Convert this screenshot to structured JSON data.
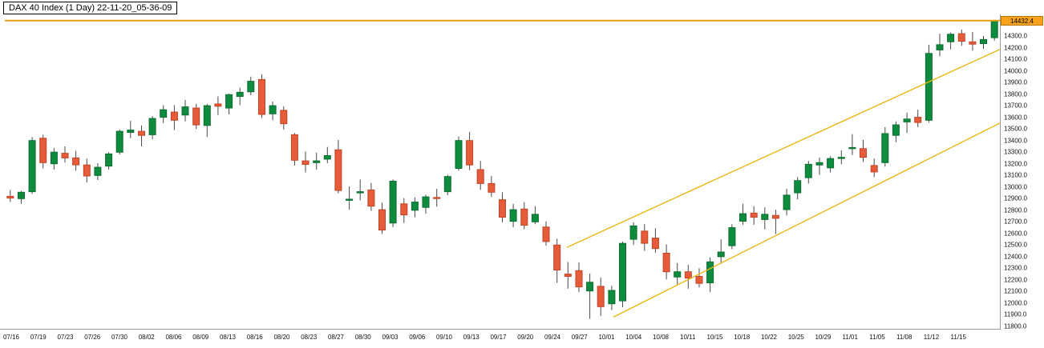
{
  "title": "DAX 40 Index (1 Day) 22-11-20_05-36-09",
  "last_price_label": "14432.4",
  "colors": {
    "up": "#0f8b3e",
    "up_border": "#0a6e30",
    "down": "#e65b39",
    "down_border": "#c24527",
    "wick": "#4a4a4a",
    "trend_line": "#e9b616",
    "horizontal_line": "#e79f13",
    "tag_bg": "#f6a21c"
  },
  "chart_data": {
    "type": "candlestick",
    "title": "DAX 40 Index (1 Day) 22-11-20_05-36-09",
    "symbol": "DAX 40 Index",
    "timeframe": "1 Day",
    "grid": false,
    "legend": false,
    "y_axis": {
      "min": 11800,
      "max": 14400,
      "tick_step": 100,
      "labels": [
        "14300.0",
        "14200.0",
        "14100.0",
        "14000.0",
        "13900.0",
        "13800.0",
        "13700.0",
        "13600.0",
        "13500.0",
        "13400.0",
        "13300.0",
        "13200.0",
        "13100.0",
        "13000.0",
        "12900.0",
        "12800.0",
        "12700.0",
        "12600.0",
        "12500.0",
        "12400.0",
        "12300.0",
        "12200.0",
        "12100.0",
        "12000.0",
        "11900.0",
        "11800.0"
      ]
    },
    "x_labels": [
      "07/16",
      "07/19",
      "07/23",
      "07/26",
      "07/30",
      "08/02",
      "08/06",
      "08/09",
      "08/13",
      "08/16",
      "08/20",
      "08/23",
      "08/27",
      "08/30",
      "09/03",
      "09/06",
      "09/10",
      "09/13",
      "09/17",
      "09/20",
      "09/24",
      "09/27",
      "10/01",
      "10/04",
      "10/08",
      "10/11",
      "10/15",
      "10/18",
      "10/22",
      "10/25",
      "10/29",
      "11/01",
      "11/05",
      "11/08",
      "11/12",
      "11/15"
    ],
    "candles": [
      [
        12920,
        12975,
        12870,
        12905
      ],
      [
        12900,
        12965,
        12855,
        12955
      ],
      [
        12960,
        13430,
        12940,
        13400
      ],
      [
        13420,
        13450,
        13160,
        13210
      ],
      [
        13200,
        13335,
        13150,
        13300
      ],
      [
        13290,
        13350,
        13210,
        13250
      ],
      [
        13250,
        13310,
        13140,
        13190
      ],
      [
        13190,
        13245,
        13040,
        13095
      ],
      [
        13100,
        13205,
        13060,
        13170
      ],
      [
        13180,
        13300,
        13150,
        13285
      ],
      [
        13300,
        13495,
        13280,
        13480
      ],
      [
        13470,
        13570,
        13420,
        13490
      ],
      [
        13480,
        13530,
        13350,
        13445
      ],
      [
        13450,
        13610,
        13410,
        13590
      ],
      [
        13600,
        13705,
        13550,
        13665
      ],
      [
        13645,
        13705,
        13490,
        13575
      ],
      [
        13620,
        13750,
        13565,
        13690
      ],
      [
        13680,
        13715,
        13500,
        13535
      ],
      [
        13530,
        13715,
        13430,
        13700
      ],
      [
        13715,
        13780,
        13620,
        13695
      ],
      [
        13680,
        13805,
        13625,
        13795
      ],
      [
        13780,
        13855,
        13705,
        13815
      ],
      [
        13820,
        13950,
        13790,
        13910
      ],
      [
        13925,
        13970,
        13595,
        13625
      ],
      [
        13630,
        13735,
        13575,
        13700
      ],
      [
        13660,
        13695,
        13495,
        13545
      ],
      [
        13450,
        13465,
        13185,
        13230
      ],
      [
        13225,
        13305,
        13125,
        13195
      ],
      [
        13210,
        13295,
        13150,
        13225
      ],
      [
        13240,
        13345,
        13205,
        13270
      ],
      [
        13320,
        13405,
        12945,
        12970
      ],
      [
        12890,
        13005,
        12805,
        12895
      ],
      [
        12950,
        13065,
        12885,
        12960
      ],
      [
        12975,
        13035,
        12795,
        12835
      ],
      [
        12805,
        12865,
        12595,
        12630
      ],
      [
        12690,
        13065,
        12655,
        13050
      ],
      [
        12855,
        12905,
        12690,
        12760
      ],
      [
        12800,
        12910,
        12740,
        12870
      ],
      [
        12825,
        12935,
        12770,
        12915
      ],
      [
        12910,
        12985,
        12830,
        12905
      ],
      [
        12960,
        13105,
        12930,
        13090
      ],
      [
        13160,
        13435,
        13140,
        13400
      ],
      [
        13400,
        13475,
        13145,
        13190
      ],
      [
        13150,
        13225,
        12975,
        13030
      ],
      [
        13030,
        13095,
        12915,
        12955
      ],
      [
        12890,
        12955,
        12695,
        12740
      ],
      [
        12705,
        12855,
        12655,
        12805
      ],
      [
        12810,
        12870,
        12635,
        12670
      ],
      [
        12700,
        12835,
        12680,
        12765
      ],
      [
        12655,
        12705,
        12495,
        12530
      ],
      [
        12500,
        12555,
        12175,
        12285
      ],
      [
        12250,
        12355,
        12125,
        12230
      ],
      [
        12280,
        12350,
        12095,
        12140
      ],
      [
        12105,
        12255,
        11865,
        12180
      ],
      [
        12145,
        12220,
        11890,
        11970
      ],
      [
        11995,
        12150,
        11940,
        12110
      ],
      [
        12020,
        12530,
        11965,
        12515
      ],
      [
        12550,
        12695,
        12500,
        12665
      ],
      [
        12620,
        12680,
        12450,
        12515
      ],
      [
        12560,
        12645,
        12435,
        12470
      ],
      [
        12430,
        12505,
        12205,
        12270
      ],
      [
        12225,
        12345,
        12160,
        12270
      ],
      [
        12270,
        12330,
        12125,
        12215
      ],
      [
        12230,
        12300,
        12135,
        12170
      ],
      [
        12175,
        12395,
        12095,
        12355
      ],
      [
        12400,
        12550,
        12340,
        12440
      ],
      [
        12495,
        12680,
        12465,
        12650
      ],
      [
        12705,
        12855,
        12675,
        12770
      ],
      [
        12775,
        12835,
        12675,
        12740
      ],
      [
        12720,
        12825,
        12635,
        12765
      ],
      [
        12755,
        12805,
        12595,
        12730
      ],
      [
        12805,
        12985,
        12755,
        12930
      ],
      [
        12950,
        13085,
        12895,
        13055
      ],
      [
        13080,
        13225,
        13030,
        13195
      ],
      [
        13190,
        13255,
        13105,
        13210
      ],
      [
        13165,
        13265,
        13125,
        13245
      ],
      [
        13255,
        13315,
        13195,
        13255
      ],
      [
        13335,
        13455,
        13275,
        13340
      ],
      [
        13330,
        13405,
        13215,
        13255
      ],
      [
        13185,
        13245,
        13085,
        13130
      ],
      [
        13210,
        13515,
        13175,
        13460
      ],
      [
        13445,
        13565,
        13385,
        13535
      ],
      [
        13560,
        13640,
        13465,
        13585
      ],
      [
        13600,
        13665,
        13515,
        13555
      ],
      [
        13575,
        14225,
        13555,
        14150
      ],
      [
        14180,
        14320,
        14125,
        14225
      ],
      [
        14250,
        14330,
        14185,
        14315
      ],
      [
        14320,
        14355,
        14215,
        14255
      ],
      [
        14250,
        14335,
        14175,
        14230
      ],
      [
        14235,
        14300,
        14190,
        14270
      ],
      [
        14285,
        14440,
        14260,
        14432
      ]
    ],
    "annotations": {
      "horizontal_line": {
        "price": 14432.4,
        "color": "#e79f13"
      },
      "trend_lines": [
        {
          "x1": 0.565,
          "price1": 12480,
          "x2": 1.0,
          "price2": 14185,
          "color": "#e9b616"
        },
        {
          "x1": 0.612,
          "price1": 11880,
          "x2": 1.0,
          "price2": 13550,
          "color": "#e9b616"
        }
      ]
    }
  }
}
